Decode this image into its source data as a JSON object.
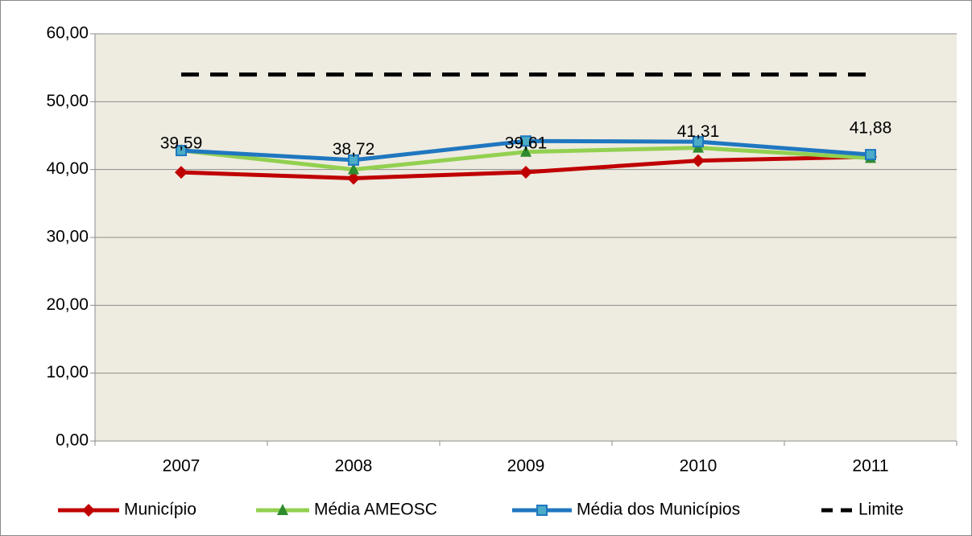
{
  "chart_data": {
    "type": "line",
    "categories": [
      "2007",
      "2008",
      "2009",
      "2010",
      "2011"
    ],
    "series": [
      {
        "name": "Município",
        "color": "#c00000",
        "marker": "diamond",
        "values": [
          39.59,
          38.72,
          39.61,
          41.31,
          41.88
        ],
        "value_labels": [
          "39,59",
          "38,72",
          "39,61",
          "41,31",
          "41,88"
        ]
      },
      {
        "name": "Média AMEOSC",
        "color": "#92d050",
        "marker": "triangle",
        "values": [
          42.8,
          40.0,
          42.6,
          43.2,
          41.7
        ]
      },
      {
        "name": "Média dos Municípios",
        "color": "#1f77c0",
        "marker": "square",
        "values": [
          42.8,
          41.4,
          44.2,
          44.1,
          42.2
        ]
      },
      {
        "name": "Limite",
        "color": "#000000",
        "marker": "none",
        "dash": true,
        "values": [
          54,
          54,
          54,
          54,
          54
        ]
      }
    ],
    "ylim": [
      0,
      60
    ],
    "yticks": [
      {
        "value": 0,
        "label": "0,00"
      },
      {
        "value": 10,
        "label": "10,00"
      },
      {
        "value": 20,
        "label": "20,00"
      },
      {
        "value": 30,
        "label": "30,00"
      },
      {
        "value": 40,
        "label": "40,00"
      },
      {
        "value": 50,
        "label": "50,00"
      },
      {
        "value": 60,
        "label": "60,00"
      }
    ],
    "grid": true,
    "legend": "bottom",
    "plot_background": "#eeebe0"
  }
}
